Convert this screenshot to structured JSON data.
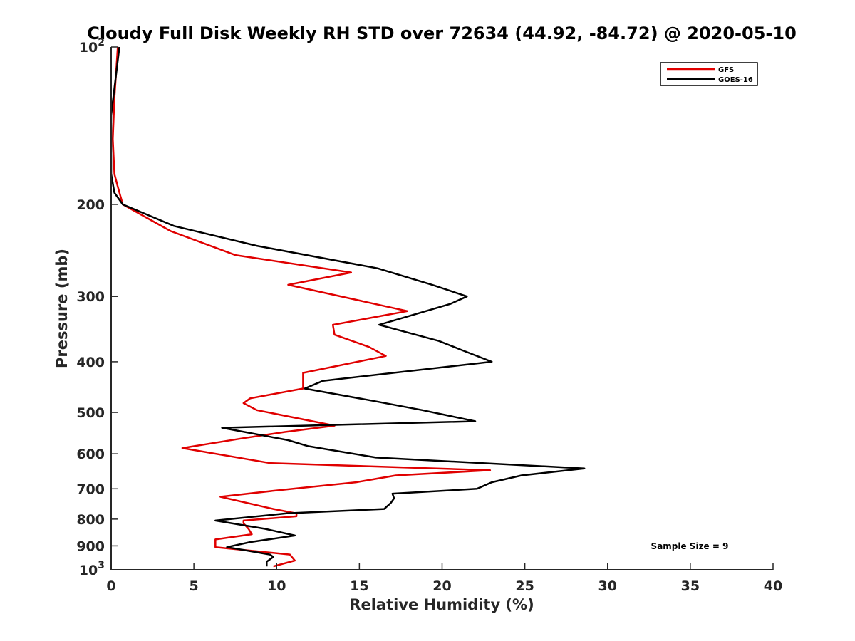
{
  "chart_data": {
    "type": "line",
    "title": "Cloudy Full Disk Weekly RH STD over 72634 (44.92, -84.72) @ 2020-05-10",
    "xlabel": "Relative Humidity (%)",
    "ylabel": "Pressure (mb)",
    "xlim": [
      0,
      40
    ],
    "ylim": [
      100,
      1000
    ],
    "yscale": "log",
    "y_reversed": true,
    "grid": false,
    "legend_position": "top-right",
    "x_ticks": [
      "0",
      "5",
      "10",
      "15",
      "20",
      "25",
      "30",
      "35",
      "40"
    ],
    "y_ticks": [
      {
        "value": 100,
        "base": "10",
        "exp": "2"
      },
      {
        "value": 200,
        "base": "200",
        "exp": ""
      },
      {
        "value": 300,
        "base": "300",
        "exp": ""
      },
      {
        "value": 400,
        "base": "400",
        "exp": ""
      },
      {
        "value": 500,
        "base": "500",
        "exp": ""
      },
      {
        "value": 600,
        "base": "600",
        "exp": ""
      },
      {
        "value": 700,
        "base": "700",
        "exp": ""
      },
      {
        "value": 800,
        "base": "800",
        "exp": ""
      },
      {
        "value": 900,
        "base": "900",
        "exp": ""
      },
      {
        "value": 1000,
        "base": "10",
        "exp": "3"
      }
    ],
    "series": [
      {
        "name": "GFS",
        "color": "#e00000",
        "points": [
          [
            0.4,
            100
          ],
          [
            0.2,
            125
          ],
          [
            0.1,
            150
          ],
          [
            0.2,
            175
          ],
          [
            0.4,
            185
          ],
          [
            0.7,
            200
          ],
          [
            3.6,
            225
          ],
          [
            7.5,
            250
          ],
          [
            14.5,
            270
          ],
          [
            10.7,
            285
          ],
          [
            17.9,
            320
          ],
          [
            13.4,
            340
          ],
          [
            13.5,
            355
          ],
          [
            15.6,
            375
          ],
          [
            16.6,
            390
          ],
          [
            11.6,
            420
          ],
          [
            11.6,
            450
          ],
          [
            8.4,
            470
          ],
          [
            8.0,
            480
          ],
          [
            8.8,
            495
          ],
          [
            13.5,
            530
          ],
          [
            10.5,
            545
          ],
          [
            8.0,
            560
          ],
          [
            4.3,
            585
          ],
          [
            9.6,
            625
          ],
          [
            22.9,
            645
          ],
          [
            17.2,
            660
          ],
          [
            14.8,
            680
          ],
          [
            10.0,
            705
          ],
          [
            6.6,
            725
          ],
          [
            9.8,
            765
          ],
          [
            11.2,
            780
          ],
          [
            11.2,
            790
          ],
          [
            8.0,
            805
          ],
          [
            8.0,
            815
          ],
          [
            8.3,
            835
          ],
          [
            8.5,
            855
          ],
          [
            6.3,
            875
          ],
          [
            6.3,
            905
          ],
          [
            10.8,
            935
          ],
          [
            11.1,
            960
          ],
          [
            9.8,
            985
          ]
        ]
      },
      {
        "name": "GOES-16",
        "color": "#000000",
        "points": [
          [
            0.5,
            100
          ],
          [
            0.0,
            135
          ],
          [
            0.0,
            175
          ],
          [
            0.2,
            190
          ],
          [
            0.7,
            200
          ],
          [
            3.8,
            220
          ],
          [
            8.8,
            240
          ],
          [
            16.1,
            265
          ],
          [
            19.4,
            285
          ],
          [
            21.5,
            300
          ],
          [
            20.5,
            310
          ],
          [
            16.2,
            340
          ],
          [
            19.8,
            365
          ],
          [
            21.2,
            380
          ],
          [
            23.0,
            400
          ],
          [
            12.8,
            435
          ],
          [
            11.7,
            450
          ],
          [
            15.8,
            475
          ],
          [
            18.8,
            495
          ],
          [
            22.0,
            520
          ],
          [
            6.7,
            535
          ],
          [
            10.7,
            565
          ],
          [
            11.9,
            580
          ],
          [
            16.0,
            610
          ],
          [
            28.6,
            640
          ],
          [
            24.8,
            660
          ],
          [
            23.0,
            680
          ],
          [
            22.1,
            700
          ],
          [
            17.0,
            715
          ],
          [
            17.1,
            730
          ],
          [
            16.9,
            745
          ],
          [
            16.5,
            765
          ],
          [
            10.6,
            780
          ],
          [
            6.3,
            805
          ],
          [
            9.3,
            835
          ],
          [
            11.1,
            860
          ],
          [
            8.4,
            885
          ],
          [
            7.0,
            905
          ],
          [
            9.6,
            935
          ],
          [
            9.8,
            945
          ],
          [
            9.4,
            965
          ],
          [
            9.4,
            985
          ]
        ]
      }
    ],
    "annotation": "Sample Size = 9"
  }
}
